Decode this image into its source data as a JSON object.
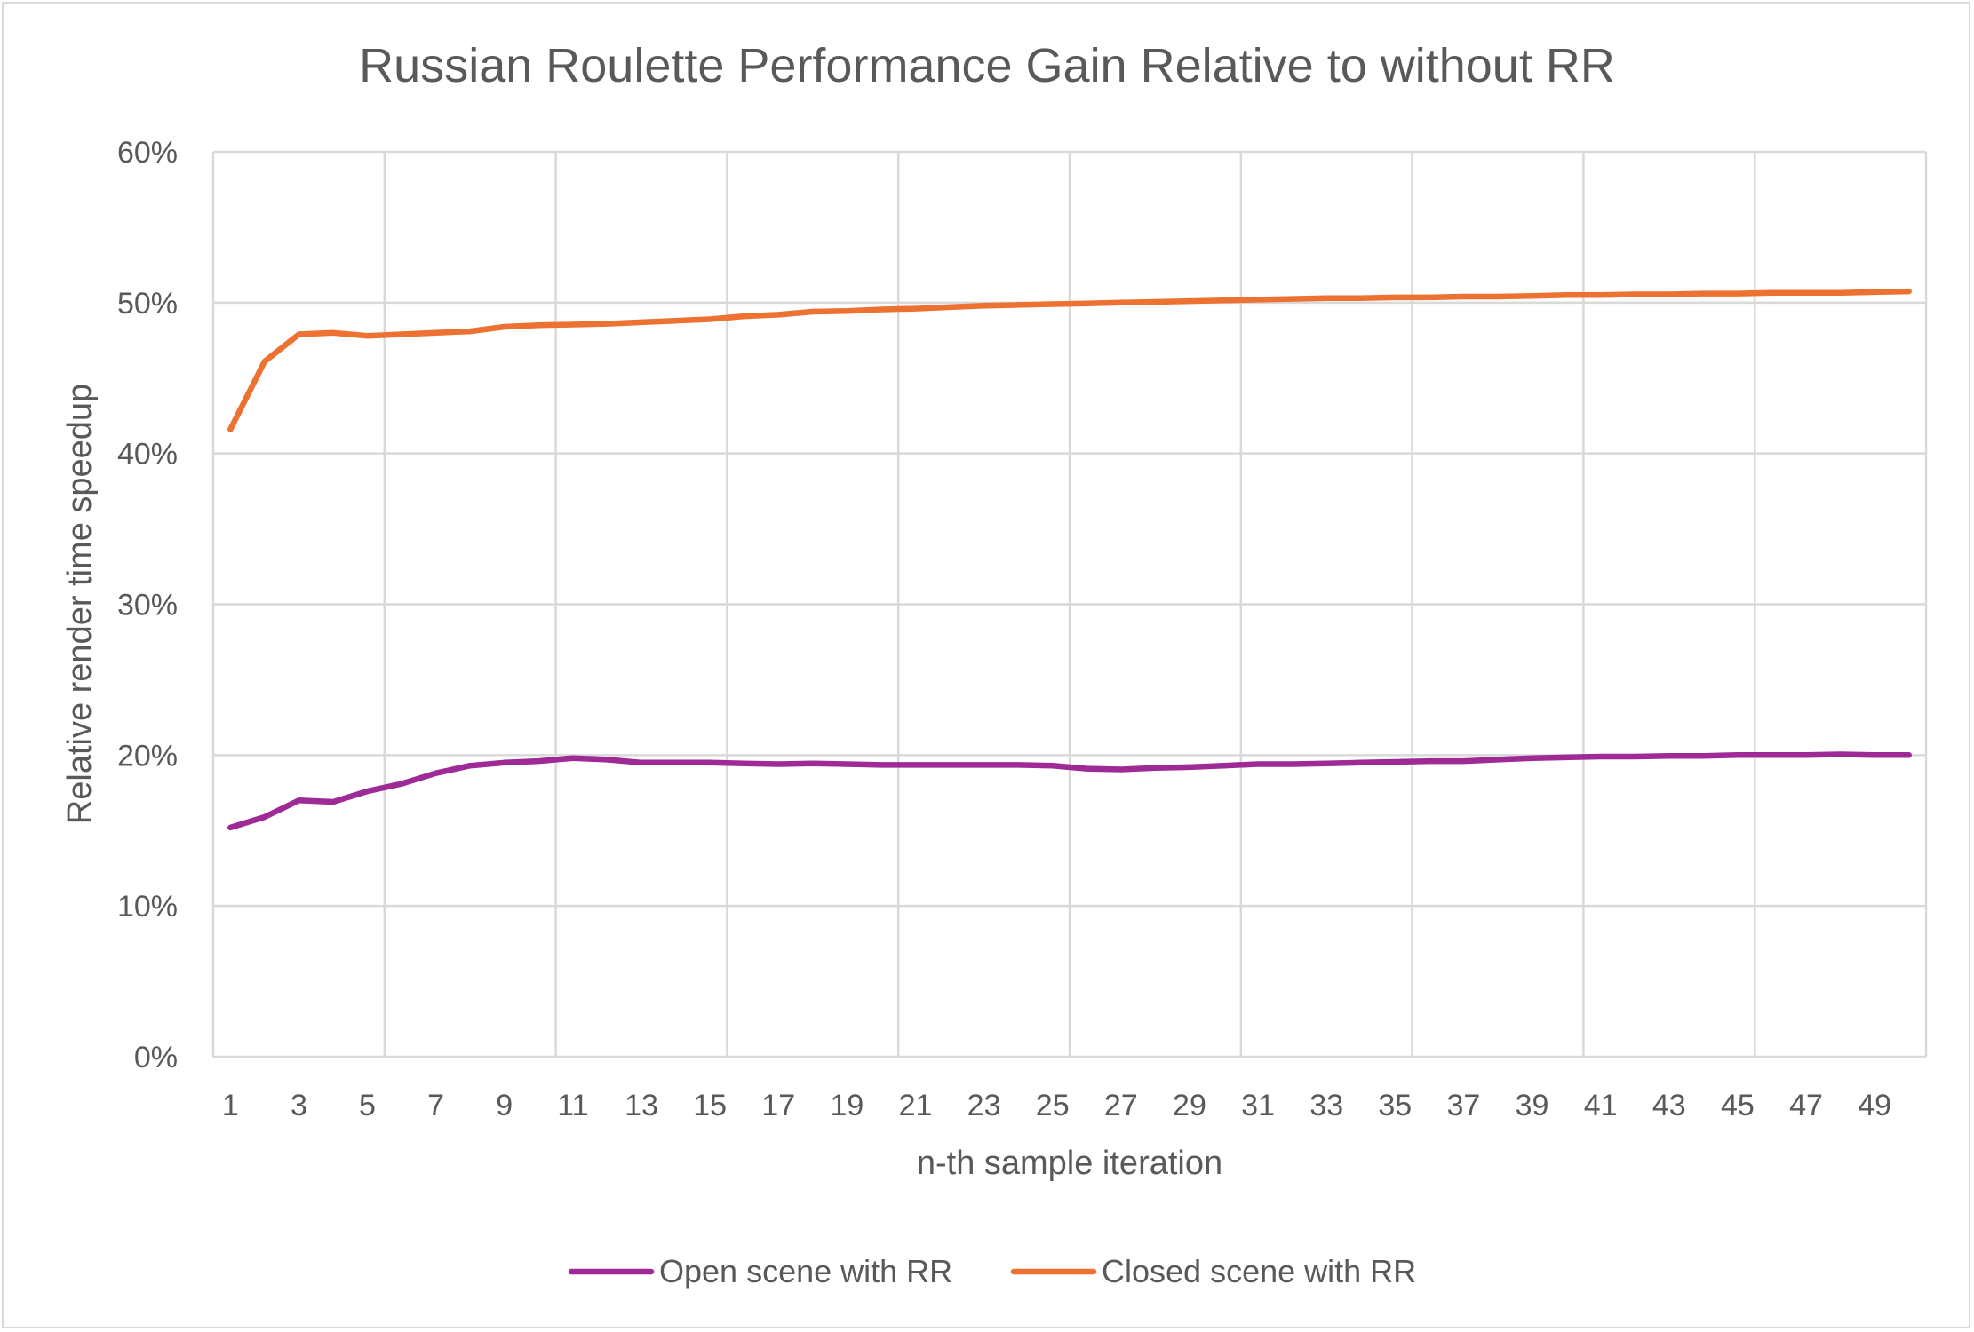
{
  "chart_data": {
    "type": "line",
    "title": "Russian Roulette Performance Gain Relative to without RR",
    "xlabel": "n-th sample iteration",
    "ylabel": "Relative render time speedup",
    "x": [
      1,
      2,
      3,
      4,
      5,
      6,
      7,
      8,
      9,
      10,
      11,
      12,
      13,
      14,
      15,
      16,
      17,
      18,
      19,
      20,
      21,
      22,
      23,
      24,
      25,
      26,
      27,
      28,
      29,
      30,
      31,
      32,
      33,
      34,
      35,
      36,
      37,
      38,
      39,
      40,
      41,
      42,
      43,
      44,
      45,
      46,
      47,
      48,
      49,
      50
    ],
    "x_tick_labels": [
      "1",
      "3",
      "5",
      "7",
      "9",
      "11",
      "13",
      "15",
      "17",
      "19",
      "21",
      "23",
      "25",
      "27",
      "29",
      "31",
      "33",
      "35",
      "37",
      "39",
      "41",
      "43",
      "45",
      "47",
      "49"
    ],
    "ylim": [
      0,
      60
    ],
    "y_ticks": [
      0,
      10,
      20,
      30,
      40,
      50,
      60
    ],
    "y_tick_labels": [
      "0%",
      "10%",
      "20%",
      "30%",
      "40%",
      "50%",
      "60%"
    ],
    "grid": true,
    "legend_position": "bottom",
    "series": [
      {
        "name": "Open scene with RR",
        "color": "#9e2a96",
        "values": [
          15.2,
          15.9,
          17.0,
          16.9,
          17.6,
          18.1,
          18.8,
          19.3,
          19.5,
          19.6,
          19.8,
          19.7,
          19.5,
          19.5,
          19.5,
          19.45,
          19.4,
          19.45,
          19.4,
          19.35,
          19.35,
          19.35,
          19.35,
          19.35,
          19.3,
          19.1,
          19.05,
          19.15,
          19.2,
          19.3,
          19.4,
          19.4,
          19.45,
          19.5,
          19.55,
          19.6,
          19.6,
          19.7,
          19.8,
          19.85,
          19.9,
          19.9,
          19.95,
          19.95,
          20.0,
          20.0,
          20.0,
          20.05,
          20.0,
          20.0
        ]
      },
      {
        "name": "Closed scene with RR",
        "color": "#ed7131",
        "values": [
          41.6,
          46.1,
          47.9,
          48.0,
          47.8,
          47.9,
          48.0,
          48.1,
          48.4,
          48.5,
          48.55,
          48.6,
          48.7,
          48.8,
          48.9,
          49.1,
          49.2,
          49.4,
          49.45,
          49.55,
          49.6,
          49.7,
          49.8,
          49.85,
          49.9,
          49.95,
          50.0,
          50.05,
          50.1,
          50.15,
          50.2,
          50.25,
          50.3,
          50.3,
          50.35,
          50.35,
          50.4,
          50.4,
          50.45,
          50.5,
          50.5,
          50.55,
          50.55,
          50.6,
          50.6,
          50.65,
          50.65,
          50.65,
          50.7,
          50.75
        ]
      }
    ]
  }
}
